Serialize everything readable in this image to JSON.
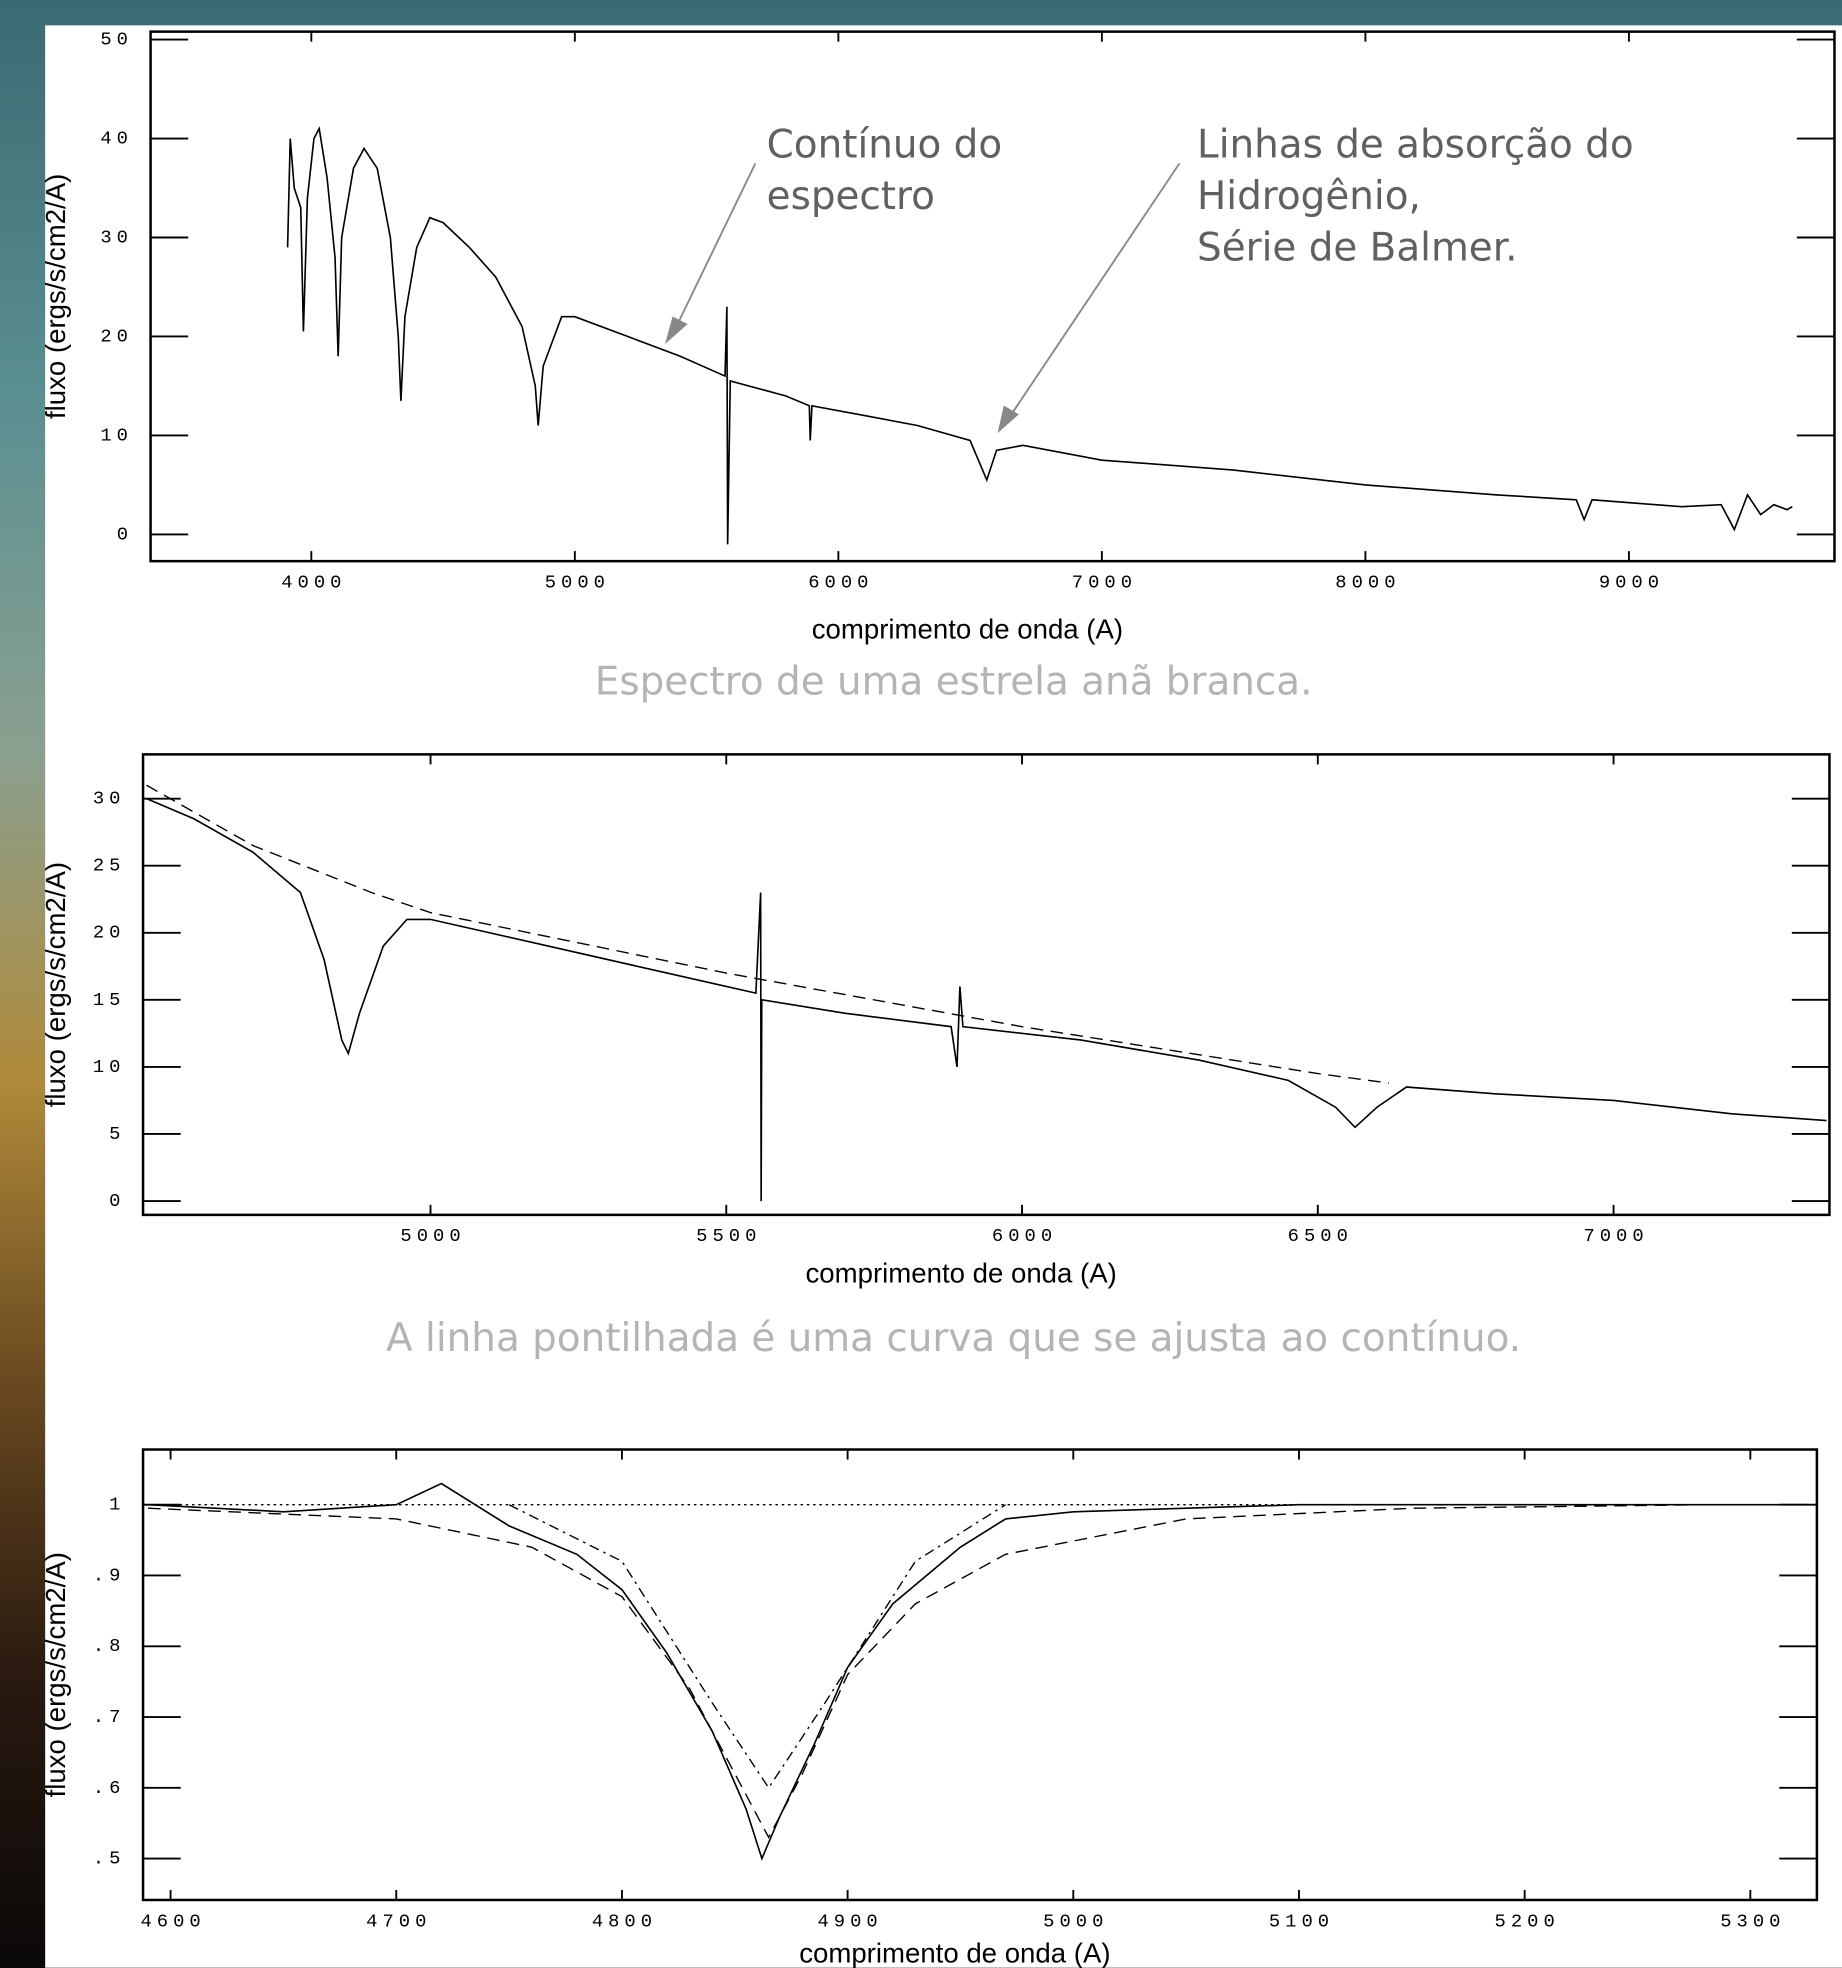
{
  "chart_data": [
    {
      "type": "line",
      "x_label": "comprimento de onda (A)",
      "y_label": "fluxo (ergs/s/cm2/A)",
      "caption": "Espectro de uma estrela anã branca.",
      "annotations": [
        [
          "Contínuo do",
          "espectro"
        ],
        [
          "Linhas de absorção do",
          "Hidrogênio,",
          "Série de Balmer."
        ]
      ],
      "xlim": [
        3390,
        9780
      ],
      "ylim": [
        -2.7,
        50.8
      ],
      "xticks": [
        4000,
        5000,
        6000,
        7000,
        8000,
        9000
      ],
      "yticks": [
        0,
        10,
        20,
        30,
        40,
        50
      ],
      "series": [
        {
          "color": "#000000",
          "dash": "solid",
          "x": [
            3910,
            3920,
            3935,
            3960,
            3970,
            3985,
            4010,
            4030,
            4060,
            4090,
            4102,
            4115,
            4160,
            4200,
            4250,
            4300,
            4330,
            4340,
            4355,
            4400,
            4450,
            4500,
            4600,
            4700,
            4800,
            4850,
            4861,
            4880,
            4950,
            5000,
            5200,
            5400,
            5570,
            5577,
            5580,
            5590,
            5800,
            5890,
            5893,
            5900,
            6100,
            6300,
            6500,
            6563,
            6600,
            6700,
            7000,
            7500,
            8000,
            8500,
            8800,
            8830,
            8860,
            9200,
            9350,
            9400,
            9450,
            9500,
            9550,
            9600,
            9620
          ],
          "values": [
            29,
            40,
            35,
            33,
            20.5,
            34,
            40,
            41,
            36,
            28,
            18,
            30,
            37,
            39,
            37,
            30,
            20,
            13.5,
            22,
            29,
            32,
            31.5,
            29,
            26,
            21,
            15,
            11,
            17,
            22,
            22,
            20,
            18,
            16,
            23,
            -1,
            15.5,
            14,
            13,
            9.5,
            13,
            12,
            11,
            9.5,
            5.5,
            8.5,
            9,
            7.5,
            6.5,
            5,
            4,
            3.5,
            1.5,
            3.5,
            2.8,
            3,
            0.5,
            4,
            2,
            3,
            2.5,
            2.8
          ]
        }
      ]
    },
    {
      "type": "line",
      "x_label": "comprimento de onda (A)",
      "y_label": "fluxo (ergs/s/cm2/A)",
      "caption": "A linha pontilhada é uma curva que se ajusta ao contínuo.",
      "xlim": [
        4514,
        7365
      ],
      "ylim": [
        -1.03,
        33.3
      ],
      "xticks": [
        5000,
        5500,
        6000,
        6500,
        7000
      ],
      "yticks": [
        0,
        5,
        10,
        15,
        20,
        25,
        30
      ],
      "series": [
        {
          "color": "#000000",
          "dash": "solid",
          "x": [
            4520,
            4600,
            4700,
            4780,
            4820,
            4850,
            4861,
            4880,
            4920,
            4960,
            5000,
            5200,
            5400,
            5550,
            5558,
            5559,
            5560,
            5700,
            5880,
            5890,
            5895,
            5900,
            6100,
            6300,
            6450,
            6530,
            6563,
            6600,
            6650,
            6800,
            7000,
            7200,
            7360
          ],
          "values": [
            30,
            28.5,
            26,
            23,
            18,
            12,
            11,
            14,
            19,
            21,
            21,
            19,
            17,
            15.5,
            23,
            0,
            15,
            14,
            13,
            10,
            16,
            13,
            12,
            10.5,
            9,
            7,
            5.5,
            7,
            8.5,
            8,
            7.5,
            6.5,
            6
          ]
        },
        {
          "color": "#000000",
          "dash": "dashed",
          "x": [
            4520,
            4700,
            4900,
            5000,
            5500,
            6000,
            6500,
            6620
          ],
          "values": [
            31,
            26.5,
            23,
            21.5,
            17,
            13,
            9.5,
            8.8
          ]
        }
      ]
    },
    {
      "type": "line",
      "x_label": "comprimento de onda (A)",
      "y_label": "fluxo (ergs/s/cm2/A)",
      "xlim": [
        4587.8,
        5329.5
      ],
      "ylim": [
        0.4415,
        1.078
      ],
      "xticks": [
        4600,
        4700,
        4800,
        4900,
        5000,
        5100,
        5200,
        5300
      ],
      "yticks": [
        {
          "value": 0.5,
          "label": ".5"
        },
        {
          "value": 0.6,
          "label": ".6"
        },
        {
          "value": 0.7,
          "label": ".7"
        },
        {
          "value": 0.8,
          "label": ".8"
        },
        {
          "value": 0.9,
          "label": ".9"
        },
        1
      ],
      "series": [
        {
          "color": "#000000",
          "dash": "solid",
          "x": [
            4590,
            4650,
            4700,
            4720,
            4750,
            4780,
            4800,
            4820,
            4840,
            4855,
            4862,
            4870,
            4885,
            4900,
            4920,
            4950,
            4970,
            5000,
            5100,
            5200,
            5300,
            5325
          ],
          "values": [
            1.0,
            0.99,
            1.0,
            1.03,
            0.97,
            0.93,
            0.88,
            0.79,
            0.68,
            0.57,
            0.5,
            0.56,
            0.66,
            0.77,
            0.86,
            0.94,
            0.98,
            0.99,
            1.0,
            1.0,
            1.0,
            1.0
          ]
        },
        {
          "color": "#000000",
          "dash": "dashed",
          "x": [
            4590,
            4700,
            4760,
            4800,
            4830,
            4850,
            4865,
            4880,
            4900,
            4930,
            4970,
            5050,
            5150,
            5280
          ],
          "values": [
            0.995,
            0.98,
            0.94,
            0.87,
            0.74,
            0.62,
            0.53,
            0.62,
            0.76,
            0.86,
            0.93,
            0.98,
            0.995,
            1.0
          ]
        },
        {
          "color": "#000000",
          "dash": "dashdot",
          "x": [
            4750,
            4800,
            4840,
            4865,
            4890,
            4930,
            4970
          ],
          "values": [
            1.0,
            0.92,
            0.72,
            0.6,
            0.72,
            0.92,
            1.0
          ]
        },
        {
          "color": "#000000",
          "dash": "dotted",
          "x": [
            4590,
            5329
          ],
          "values": [
            1,
            1
          ]
        }
      ]
    }
  ]
}
